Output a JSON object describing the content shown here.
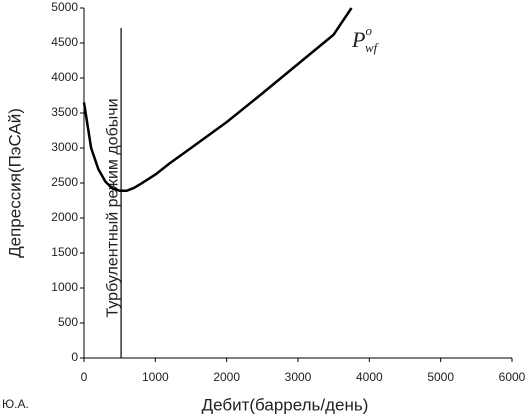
{
  "chart_data": {
    "type": "line",
    "x_label": "Дебит(баррель/день)",
    "y_label": "Депрессия(ПэСАй)",
    "author": "Ю.А.",
    "series": [
      {
        "name": "P",
        "color": "#000000",
        "x": [
          0,
          100,
          200,
          300,
          400,
          500,
          600,
          700,
          800,
          1000,
          1200,
          1500,
          2000,
          2500,
          3000,
          3500,
          3750
        ],
        "values": [
          3650,
          3000,
          2700,
          2520,
          2420,
          2390,
          2390,
          2430,
          2490,
          2620,
          2780,
          3000,
          3370,
          3780,
          4200,
          4620,
          5000
        ]
      }
    ],
    "annotation": {
      "main": "P",
      "sub": "wf",
      "sup": "o"
    },
    "regime_line": {
      "x": 520,
      "label": "Турбулентный режим добычи"
    },
    "xlim": [
      0,
      6000
    ],
    "xticks": [
      0,
      1000,
      2000,
      3000,
      4000,
      5000,
      6000
    ],
    "ylim": [
      0,
      5000
    ],
    "yticks": [
      0,
      500,
      1000,
      1500,
      2000,
      2500,
      3000,
      3500,
      4000,
      4500,
      5000
    ]
  }
}
